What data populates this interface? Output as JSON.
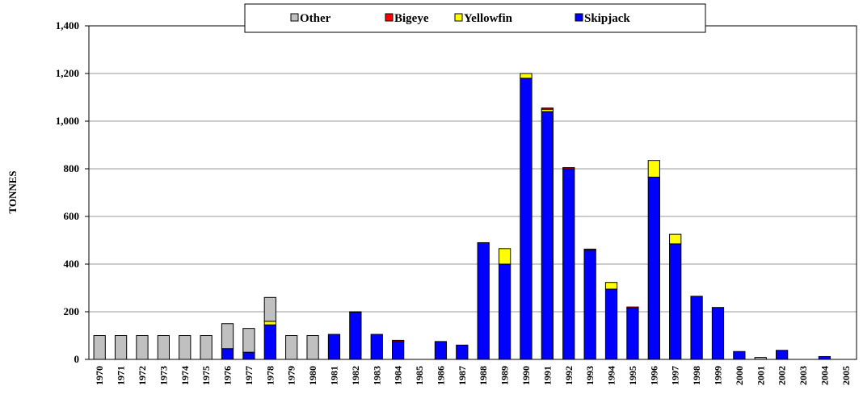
{
  "chart_data": {
    "type": "stacked_bar",
    "y_label": "TONNES",
    "categories": [
      "1970",
      "1971",
      "1972",
      "1973",
      "1974",
      "1975",
      "1976",
      "1977",
      "1978",
      "1979",
      "1980",
      "1981",
      "1982",
      "1983",
      "1984",
      "1985",
      "1986",
      "1987",
      "1988",
      "1989",
      "1990",
      "1991",
      "1992",
      "1993",
      "1994",
      "1995",
      "1996",
      "1997",
      "1998",
      "1999",
      "2000",
      "2001",
      "2002",
      "2003",
      "2004",
      "2005"
    ],
    "series": [
      {
        "name": "Skipjack",
        "color": "#0000ff",
        "values": [
          0,
          0,
          0,
          0,
          0,
          0,
          45,
          30,
          145,
          0,
          0,
          105,
          198,
          105,
          75,
          0,
          75,
          60,
          490,
          400,
          1180,
          1040,
          800,
          458,
          295,
          215,
          765,
          485,
          265,
          218,
          33,
          0,
          38,
          0,
          12,
          0
        ]
      },
      {
        "name": "Yellowfin",
        "color": "#ffff00",
        "values": [
          0,
          0,
          0,
          0,
          0,
          0,
          0,
          0,
          15,
          0,
          0,
          0,
          0,
          0,
          0,
          0,
          0,
          0,
          0,
          65,
          20,
          10,
          0,
          0,
          28,
          0,
          70,
          40,
          0,
          0,
          0,
          0,
          0,
          0,
          0,
          0
        ]
      },
      {
        "name": "Bigeye",
        "color": "#ff0000",
        "values": [
          0,
          0,
          0,
          0,
          0,
          0,
          0,
          0,
          0,
          0,
          0,
          0,
          2,
          0,
          5,
          0,
          0,
          0,
          0,
          0,
          0,
          5,
          5,
          5,
          0,
          5,
          0,
          0,
          0,
          0,
          0,
          0,
          0,
          0,
          0,
          0
        ]
      },
      {
        "name": "Other",
        "color": "#c0c0c0",
        "values": [
          100,
          100,
          100,
          100,
          100,
          100,
          105,
          100,
          100,
          100,
          100,
          0,
          0,
          0,
          0,
          0,
          0,
          0,
          0,
          0,
          0,
          0,
          0,
          0,
          0,
          0,
          0,
          0,
          0,
          0,
          0,
          8,
          0,
          0,
          0,
          0
        ]
      }
    ],
    "ylim": [
      0,
      1400
    ],
    "yticks": [
      0,
      200,
      400,
      600,
      800,
      {
        "value": 1000,
        "label": "1,000"
      },
      {
        "value": 1200,
        "label": "1,200"
      },
      {
        "value": 1400,
        "label": "1,400"
      }
    ],
    "grid": true,
    "legend": "top"
  }
}
